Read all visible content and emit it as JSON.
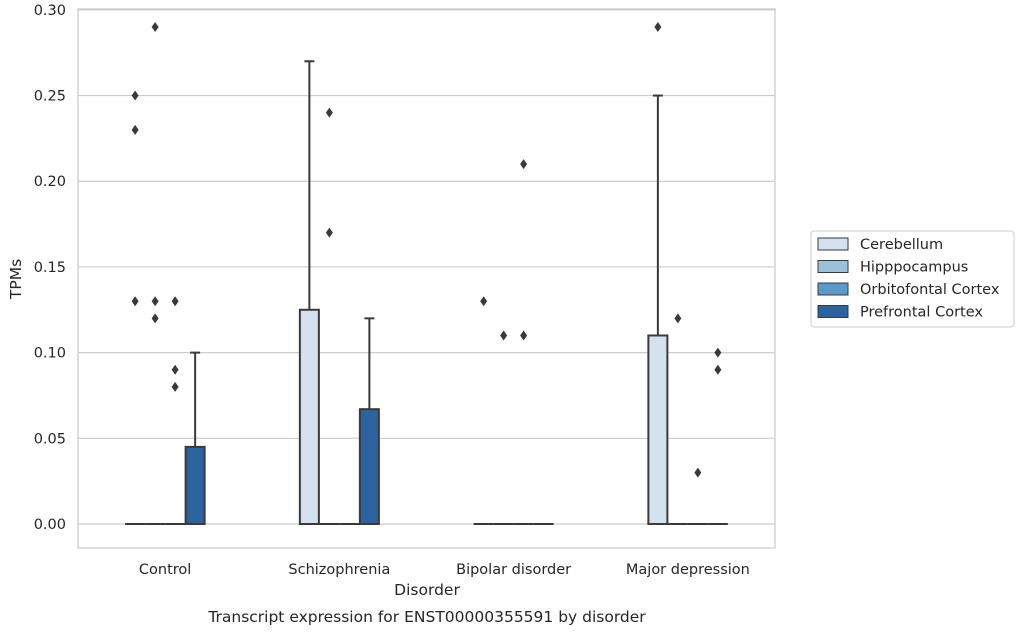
{
  "chart_data": {
    "type": "boxplot",
    "title": "",
    "xlabel": "Disorder",
    "ylabel": "TPMs",
    "caption": "Transcript expression for ENST00000355591 by disorder",
    "categories": [
      "Control",
      "Schizophrenia",
      "Bipolar disorder",
      "Major depression"
    ],
    "ylim": [
      -0.014,
      0.3005
    ],
    "yticks": [
      0.0,
      0.05,
      0.1,
      0.15,
      0.2,
      0.25,
      0.3
    ],
    "ytick_labels": [
      "0.00",
      "0.05",
      "0.10",
      "0.15",
      "0.20",
      "0.25",
      "0.30"
    ],
    "grid": "horizontal",
    "legend_position": "right",
    "series": [
      {
        "name": "Cerebellum",
        "color": "#d4e2f0",
        "boxes": [
          {
            "q1": 0,
            "median": 0,
            "q3": 0,
            "whisker_low": 0,
            "whisker_high": 0,
            "outliers": [
              0.13,
              0.23,
              0.25
            ]
          },
          {
            "q1": 0,
            "median": 0,
            "q3": 0.125,
            "whisker_low": 0,
            "whisker_high": 0.27,
            "outliers": []
          },
          {
            "q1": 0,
            "median": 0,
            "q3": 0,
            "whisker_low": 0,
            "whisker_high": 0,
            "outliers": [
              0.13
            ]
          },
          {
            "q1": 0,
            "median": 0,
            "q3": 0.11,
            "whisker_low": 0,
            "whisker_high": 0.25,
            "outliers": [
              0.29
            ]
          }
        ]
      },
      {
        "name": "Hipppocampus",
        "color": "#9ac0da",
        "boxes": [
          {
            "q1": 0,
            "median": 0,
            "q3": 0,
            "whisker_low": 0,
            "whisker_high": 0,
            "outliers": [
              0.12,
              0.13,
              0.29
            ]
          },
          {
            "q1": 0,
            "median": 0,
            "q3": 0,
            "whisker_low": 0,
            "whisker_high": 0,
            "outliers": [
              0.17,
              0.24
            ]
          },
          {
            "q1": 0,
            "median": 0,
            "q3": 0,
            "whisker_low": 0,
            "whisker_high": 0,
            "outliers": [
              0.11
            ]
          },
          {
            "q1": 0,
            "median": 0,
            "q3": 0,
            "whisker_low": 0,
            "whisker_high": 0,
            "outliers": [
              0.12
            ]
          }
        ]
      },
      {
        "name": "Orbitofontal Cortex",
        "color": "#5a9ac8",
        "boxes": [
          {
            "q1": 0,
            "median": 0,
            "q3": 0,
            "whisker_low": 0,
            "whisker_high": 0,
            "outliers": [
              0.08,
              0.09,
              0.13
            ]
          },
          {
            "q1": 0,
            "median": 0,
            "q3": 0,
            "whisker_low": 0,
            "whisker_high": 0,
            "outliers": []
          },
          {
            "q1": 0,
            "median": 0,
            "q3": 0,
            "whisker_low": 0,
            "whisker_high": 0,
            "outliers": [
              0.11,
              0.21
            ]
          },
          {
            "q1": 0,
            "median": 0,
            "q3": 0,
            "whisker_low": 0,
            "whisker_high": 0,
            "outliers": [
              0.03
            ]
          }
        ]
      },
      {
        "name": "Prefrontal Cortex",
        "color": "#2b63a0",
        "boxes": [
          {
            "q1": 0,
            "median": 0,
            "q3": 0.045,
            "whisker_low": 0,
            "whisker_high": 0.1,
            "outliers": []
          },
          {
            "q1": 0,
            "median": 0,
            "q3": 0.067,
            "whisker_low": 0,
            "whisker_high": 0.12,
            "outliers": []
          },
          {
            "q1": 0,
            "median": 0,
            "q3": 0,
            "whisker_low": 0,
            "whisker_high": 0,
            "outliers": []
          },
          {
            "q1": 0,
            "median": 0,
            "q3": 0,
            "whisker_low": 0,
            "whisker_high": 0,
            "outliers": [
              0.09,
              0.1
            ]
          }
        ]
      }
    ]
  }
}
